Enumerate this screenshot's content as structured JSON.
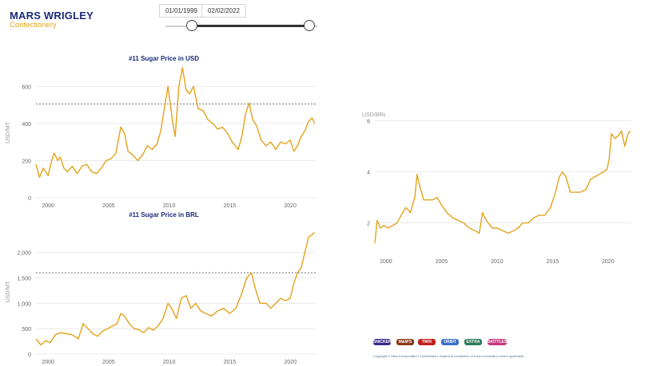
{
  "logo": {
    "name": "MARS WRIGLEY",
    "sub": "Confectionery"
  },
  "date_range": {
    "start": "01/01/1999",
    "end": "02/02/2022"
  },
  "colors": {
    "line": "#e3a21a",
    "title": "#1b2a7a",
    "grid": "#e6e6e6",
    "axis_text": "#666666",
    "ref_line": "#888888"
  },
  "brands": [
    "SNICKERS",
    "M&M'S",
    "TWIX",
    "ORBIT",
    "EXTRA",
    "SKITTLES"
  ],
  "footer": "Copyright © Mars Incorporated | Confidential | Subject to completion of local consultation where applicable.",
  "chart_data": [
    {
      "type": "line",
      "title": "#11 Sugar Price in USD",
      "ylabel": "USD/MT",
      "xlim": [
        1999,
        2022.1
      ],
      "ylim": [
        0,
        700
      ],
      "yticks": [
        0,
        200,
        400,
        600
      ],
      "ytick_labels": [
        "0",
        "200",
        "400",
        "600"
      ],
      "xticks": [
        2000,
        2005,
        2010,
        2015,
        2020
      ],
      "reference_line": 505,
      "series": [
        {
          "x": [
            1999.0,
            1999.3,
            1999.6,
            2000.0,
            2000.3,
            2000.5,
            2000.8,
            2001.0,
            2001.3,
            2001.6,
            2002.0,
            2002.4,
            2002.8,
            2003.2,
            2003.6,
            2004.0,
            2004.4,
            2004.8,
            2005.2,
            2005.6,
            2006.0,
            2006.3,
            2006.6,
            2007.0,
            2007.4,
            2007.8,
            2008.2,
            2008.6,
            2009.0,
            2009.3,
            2009.6,
            2009.9,
            2010.1,
            2010.3,
            2010.5,
            2010.8,
            2011.1,
            2011.4,
            2011.7,
            2012.0,
            2012.4,
            2012.8,
            2013.2,
            2013.6,
            2014.0,
            2014.4,
            2014.8,
            2015.2,
            2015.7,
            2016.0,
            2016.3,
            2016.6,
            2016.9,
            2017.2,
            2017.6,
            2018.0,
            2018.4,
            2018.8,
            2019.2,
            2019.6,
            2020.0,
            2020.3,
            2020.6,
            2020.9,
            2021.2,
            2021.5,
            2021.8,
            2022.0
          ],
          "y": [
            180,
            110,
            160,
            120,
            200,
            240,
            200,
            220,
            160,
            140,
            170,
            130,
            170,
            180,
            140,
            130,
            160,
            200,
            210,
            240,
            380,
            350,
            250,
            230,
            200,
            230,
            280,
            260,
            290,
            360,
            480,
            600,
            500,
            400,
            330,
            600,
            700,
            580,
            560,
            600,
            480,
            470,
            420,
            400,
            370,
            380,
            350,
            300,
            260,
            330,
            450,
            510,
            420,
            390,
            310,
            280,
            300,
            260,
            300,
            290,
            310,
            250,
            280,
            330,
            360,
            410,
            430,
            400
          ]
        }
      ]
    },
    {
      "type": "line",
      "title": "#11 Sugar Price in BRL",
      "ylabel": "USD/MT",
      "xlim": [
        1999,
        2022.1
      ],
      "ylim": [
        0,
        2450
      ],
      "yticks": [
        0,
        500,
        1000,
        1500,
        2000
      ],
      "ytick_labels": [
        "0",
        "500",
        "1,000",
        "1,500",
        "2,000"
      ],
      "xticks": [
        2000,
        2005,
        2010,
        2015,
        2020
      ],
      "reference_line": 1600,
      "series": [
        {
          "x": [
            1999.0,
            1999.4,
            1999.8,
            2000.2,
            2000.6,
            2001.0,
            2001.5,
            2002.0,
            2002.5,
            2002.9,
            2003.3,
            2003.7,
            2004.1,
            2004.5,
            2004.9,
            2005.3,
            2005.7,
            2006.0,
            2006.3,
            2006.7,
            2007.1,
            2007.5,
            2007.9,
            2008.3,
            2008.7,
            2009.1,
            2009.5,
            2009.9,
            2010.2,
            2010.6,
            2011.0,
            2011.4,
            2011.8,
            2012.2,
            2012.6,
            2013.0,
            2013.5,
            2014.0,
            2014.5,
            2015.0,
            2015.5,
            2016.0,
            2016.4,
            2016.8,
            2017.1,
            2017.5,
            2018.0,
            2018.4,
            2018.8,
            2019.2,
            2019.6,
            2020.0,
            2020.3,
            2020.6,
            2020.9,
            2021.2,
            2021.5,
            2021.8,
            2022.0
          ],
          "y": [
            300,
            180,
            260,
            230,
            380,
            420,
            400,
            380,
            300,
            600,
            500,
            400,
            350,
            450,
            500,
            550,
            600,
            800,
            750,
            600,
            500,
            480,
            420,
            520,
            470,
            560,
            700,
            1000,
            900,
            700,
            1100,
            1150,
            900,
            1000,
            850,
            800,
            750,
            850,
            900,
            800,
            900,
            1200,
            1500,
            1600,
            1300,
            1000,
            1000,
            900,
            1000,
            1100,
            1050,
            1100,
            1400,
            1600,
            1700,
            2000,
            2300,
            2350,
            2400
          ]
        }
      ]
    },
    {
      "type": "line",
      "title": "",
      "ylabel": "USD/BRL",
      "xlim": [
        1999,
        2022.1
      ],
      "ylim": [
        0.8,
        6.2
      ],
      "yticks": [
        2,
        4,
        6
      ],
      "ytick_labels": [
        "2",
        "4",
        "6"
      ],
      "xticks": [
        2000,
        2005,
        2010,
        2015,
        2020
      ],
      "series": [
        {
          "x": [
            1999.0,
            1999.2,
            1999.5,
            1999.8,
            2000.2,
            2000.6,
            2001.0,
            2001.5,
            2001.8,
            2002.2,
            2002.6,
            2002.8,
            2003.0,
            2003.4,
            2003.8,
            2004.2,
            2004.6,
            2005.0,
            2005.5,
            2006.0,
            2006.5,
            2007.0,
            2007.5,
            2008.0,
            2008.4,
            2008.7,
            2008.9,
            2009.2,
            2009.6,
            2010.0,
            2010.5,
            2011.0,
            2011.5,
            2011.9,
            2012.3,
            2012.8,
            2013.3,
            2013.8,
            2014.3,
            2014.8,
            2015.2,
            2015.6,
            2015.9,
            2016.2,
            2016.6,
            2017.0,
            2017.5,
            2018.0,
            2018.4,
            2018.8,
            2019.2,
            2019.6,
            2019.9,
            2020.1,
            2020.3,
            2020.6,
            2020.9,
            2021.2,
            2021.5,
            2021.8,
            2022.0
          ],
          "y": [
            1.2,
            2.1,
            1.8,
            1.9,
            1.8,
            1.9,
            2.0,
            2.4,
            2.6,
            2.4,
            3.0,
            3.9,
            3.5,
            2.9,
            2.9,
            2.9,
            3.0,
            2.7,
            2.4,
            2.2,
            2.1,
            2.0,
            1.8,
            1.7,
            1.6,
            2.4,
            2.2,
            2.0,
            1.8,
            1.8,
            1.7,
            1.6,
            1.7,
            1.8,
            2.0,
            2.0,
            2.2,
            2.3,
            2.3,
            2.6,
            3.1,
            3.8,
            4.0,
            3.8,
            3.2,
            3.2,
            3.2,
            3.3,
            3.7,
            3.8,
            3.9,
            4.0,
            4.1,
            4.5,
            5.5,
            5.3,
            5.4,
            5.6,
            5.0,
            5.5,
            5.6
          ]
        }
      ]
    }
  ]
}
